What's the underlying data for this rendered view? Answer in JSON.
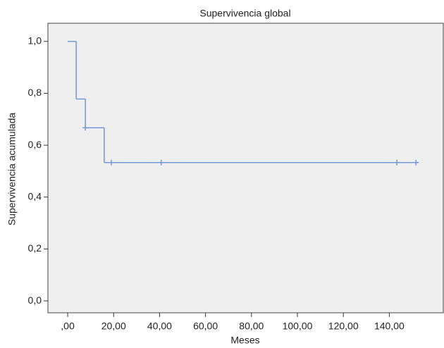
{
  "chart_data": {
    "type": "step",
    "title": "Supervivencia global",
    "x_label": "Meses",
    "y_label": "Supervivencia acumulada",
    "color": "#6f98d2",
    "series": [
      {
        "x": [
          0,
          3.7,
          7.7,
          15.9,
          151.6
        ],
        "values": [
          1.0,
          0.778,
          0.667,
          0.533,
          0.533
        ]
      }
    ],
    "censored": {
      "x": [
        7.7,
        19.0,
        40.7,
        143.3,
        151.6
      ],
      "values": [
        0.667,
        0.533,
        0.533,
        0.533,
        0.533
      ]
    },
    "xlim": [
      -8.6,
      163.5
    ],
    "ylim": [
      -0.046,
      1.07
    ],
    "xticks": [
      {
        "value": 0,
        "label": ",00"
      },
      {
        "value": 20,
        "label": "20,00"
      },
      {
        "value": 40,
        "label": "40,00"
      },
      {
        "value": 60,
        "label": "60,00"
      },
      {
        "value": 80,
        "label": "80,00"
      },
      {
        "value": 100,
        "label": "100,00"
      },
      {
        "value": 120,
        "label": "120,00"
      },
      {
        "value": 140,
        "label": "140,00"
      }
    ],
    "yticks": [
      {
        "value": 0,
        "label": "0,0"
      },
      {
        "value": 0.2,
        "label": "0,2"
      },
      {
        "value": 0.4,
        "label": "0,4"
      },
      {
        "value": 0.6,
        "label": "0,6"
      },
      {
        "value": 0.8,
        "label": "0,8"
      },
      {
        "value": 1.0,
        "label": "1,0"
      }
    ]
  }
}
